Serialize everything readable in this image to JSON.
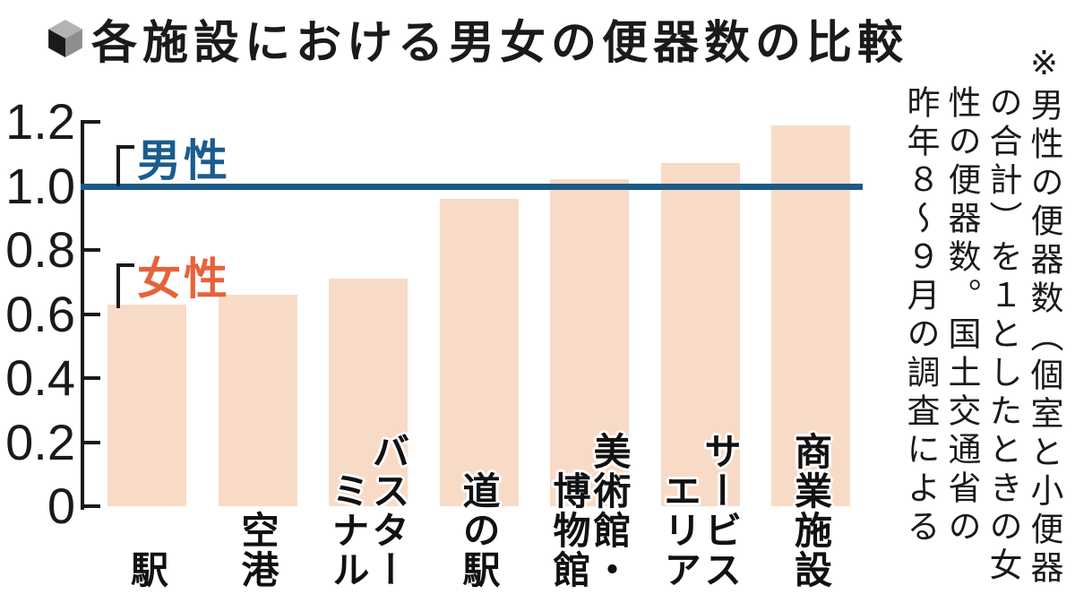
{
  "title": "各施設における男女の便器数の比較",
  "chart_data": {
    "type": "bar",
    "title": "各施設における男女の便器数の比較",
    "categories": [
      "駅",
      "空港",
      "バスターミナル",
      "道の駅",
      "美術館・博物館",
      "サービスエリア",
      "商業施設"
    ],
    "category_columns": [
      [
        "駅"
      ],
      [
        "空港"
      ],
      [
        "バスター",
        "ミナル"
      ],
      [
        "道の駅"
      ],
      [
        "美術館・",
        "博物館"
      ],
      [
        "サービス",
        "エリア"
      ],
      [
        "商業施設"
      ]
    ],
    "series": [
      {
        "name": "女性",
        "values": [
          0.63,
          0.66,
          0.71,
          0.96,
          1.02,
          1.07,
          1.19
        ]
      }
    ],
    "reference_line": {
      "name": "男性",
      "value": 1.0
    },
    "y_ticks": [
      "1.2",
      "1.0",
      "0.8",
      "0.6",
      "0.4",
      "0.2",
      "0"
    ],
    "ylim": [
      0,
      1.2
    ],
    "grid": false,
    "legend_position": "inside-top-left",
    "colors": {
      "bar": "#f8dbc6",
      "reference_line": "#1c5a87",
      "male_label": "#1b5c8e",
      "female_label": "#e6623b",
      "axis": "#1a1a1a"
    }
  },
  "annotation": {
    "text": "※男性の便器数（個室と小便器の合計）を１としたときの女性の便器数。国土交通省の昨年８～９月の調査による",
    "columns": [
      "※男性の便器数（個室と小便器",
      "の合計）を１としたときの女",
      "性の便器数。国土交通省の",
      "昨年８～９月の調査による"
    ]
  }
}
